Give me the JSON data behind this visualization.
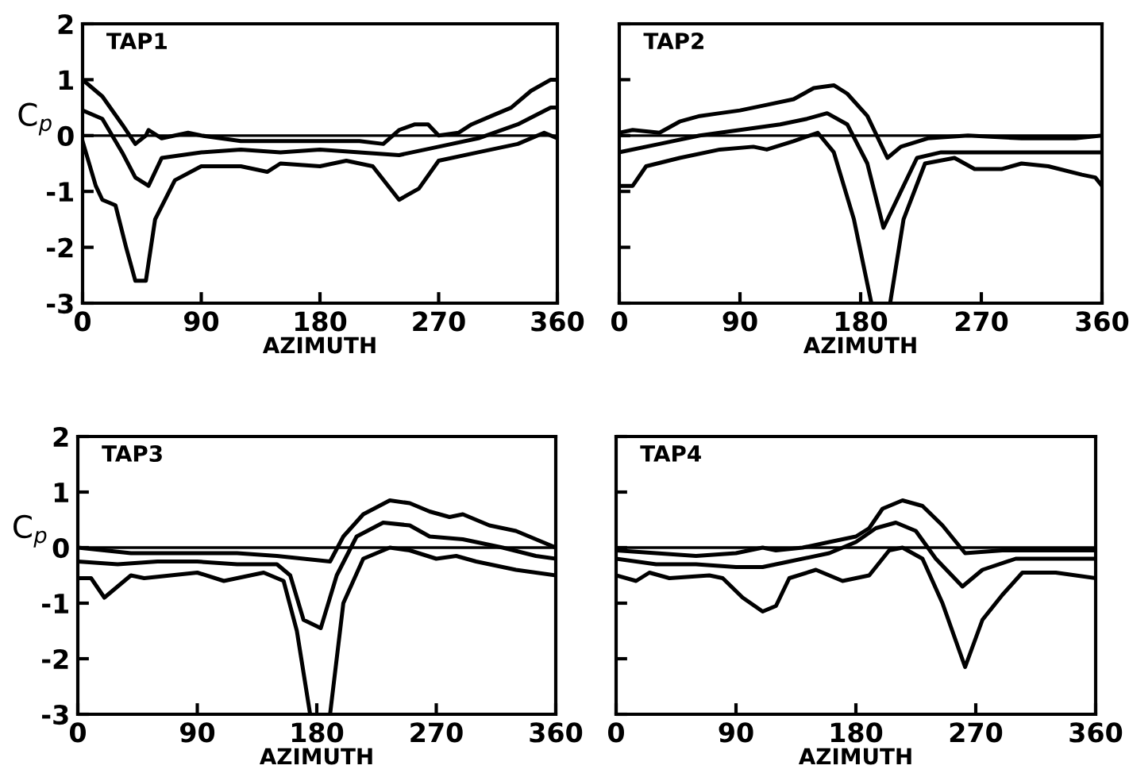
{
  "chart_data": [
    {
      "type": "line",
      "title": "TAP1",
      "xlabel": "AZIMUTH",
      "ylabel": "C$_{p}$",
      "xlim": [
        0,
        360
      ],
      "ylim": [
        -3,
        2
      ],
      "xticks": [
        0,
        90,
        180,
        270,
        360
      ],
      "yticks": [
        -3,
        -2,
        -1,
        0,
        1,
        2
      ],
      "line_style": "solid",
      "marker": "none",
      "ref_lines": [
        {
          "axis": "y",
          "value": 0,
          "color": "#000000"
        }
      ],
      "series": [
        {
          "color": "#000000",
          "x": [
            0,
            15,
            30,
            40,
            48,
            50,
            60,
            80,
            90,
            120,
            150,
            180,
            210,
            228,
            240,
            252,
            262,
            270,
            285,
            295,
            310,
            325,
            340,
            355,
            360
          ],
          "values": [
            1.0,
            0.7,
            0.2,
            -0.15,
            0,
            0.1,
            -0.05,
            0.05,
            0,
            -0.1,
            -0.1,
            -0.1,
            -0.1,
            -0.15,
            0.1,
            0.2,
            0.2,
            0.0,
            0.05,
            0.2,
            0.35,
            0.5,
            0.8,
            1.0,
            1.0
          ]
        },
        {
          "color": "#000000",
          "x": [
            0,
            15,
            30,
            40,
            50,
            60,
            90,
            120,
            150,
            180,
            210,
            240,
            270,
            300,
            330,
            355,
            360
          ],
          "values": [
            0.45,
            0.3,
            -0.3,
            -0.75,
            -0.9,
            -0.4,
            -0.3,
            -0.25,
            -0.3,
            -0.25,
            -0.3,
            -0.35,
            -0.2,
            -0.05,
            0.2,
            0.5,
            0.5
          ]
        },
        {
          "color": "#000000",
          "x": [
            0,
            10,
            15,
            25,
            33,
            40,
            48,
            55,
            70,
            90,
            120,
            140,
            150,
            180,
            200,
            220,
            240,
            255,
            270,
            300,
            330,
            350,
            360
          ],
          "values": [
            -0.1,
            -0.9,
            -1.15,
            -1.25,
            -2.0,
            -2.6,
            -2.6,
            -1.5,
            -0.8,
            -0.55,
            -0.55,
            -0.65,
            -0.5,
            -0.55,
            -0.45,
            -0.55,
            -1.15,
            -0.95,
            -0.45,
            -0.3,
            -0.15,
            0.05,
            -0.05
          ]
        }
      ]
    },
    {
      "type": "line",
      "title": "TAP2",
      "xlabel": "AZIMUTH",
      "xlim": [
        0,
        360
      ],
      "ylim": [
        -3,
        2
      ],
      "xticks": [
        0,
        90,
        180,
        270,
        360
      ],
      "yticks": [
        -3,
        -2,
        -1,
        0,
        1,
        2
      ],
      "tick_labels": "x",
      "line_style": "solid",
      "marker": "none",
      "ref_lines": [
        {
          "axis": "y",
          "value": 0,
          "color": "#000000"
        }
      ],
      "series": [
        {
          "color": "#000000",
          "x": [
            0,
            10,
            30,
            45,
            60,
            75,
            90,
            110,
            130,
            145,
            160,
            170,
            185,
            200,
            210,
            230,
            260,
            300,
            340,
            360
          ],
          "values": [
            0.05,
            0.1,
            0.05,
            0.25,
            0.35,
            0.4,
            0.45,
            0.55,
            0.65,
            0.85,
            0.9,
            0.75,
            0.35,
            -0.4,
            -0.2,
            -0.05,
            0.0,
            -0.05,
            -0.05,
            0.0
          ]
        },
        {
          "color": "#000000",
          "x": [
            0,
            30,
            60,
            90,
            120,
            140,
            155,
            170,
            185,
            197,
            210,
            222,
            240,
            270,
            300,
            360
          ],
          "values": [
            -0.3,
            -0.15,
            0.0,
            0.1,
            0.2,
            0.3,
            0.4,
            0.2,
            -0.5,
            -1.65,
            -1.0,
            -0.4,
            -0.3,
            -0.3,
            -0.3,
            -0.3
          ]
        },
        {
          "color": "#000000",
          "x": [
            0,
            10,
            20,
            45,
            75,
            100,
            110,
            130,
            148,
            160,
            175,
            188,
            195,
            202,
            212,
            228,
            250,
            265,
            285,
            300,
            320,
            345,
            355,
            360
          ],
          "values": [
            -0.9,
            -0.9,
            -0.55,
            -0.4,
            -0.25,
            -0.2,
            -0.25,
            -0.1,
            0.05,
            -0.3,
            -1.5,
            -3.0,
            null,
            -3.0,
            -1.5,
            -0.5,
            -0.4,
            -0.6,
            -0.6,
            -0.5,
            -0.55,
            -0.7,
            -0.75,
            -0.9
          ]
        }
      ]
    },
    {
      "type": "line",
      "title": "TAP3",
      "xlabel": "AZIMUTH",
      "ylabel": "C$_{p}$",
      "xlim": [
        0,
        360
      ],
      "ylim": [
        -3,
        2
      ],
      "xticks": [
        0,
        90,
        180,
        270,
        360
      ],
      "yticks": [
        -3,
        -2,
        -1,
        0,
        1,
        2
      ],
      "line_style": "solid",
      "marker": "none",
      "ref_lines": [
        {
          "axis": "y",
          "value": 0,
          "color": "#000000"
        }
      ],
      "series": [
        {
          "color": "#000000",
          "x": [
            0,
            20,
            40,
            60,
            90,
            120,
            150,
            170,
            190,
            200,
            215,
            235,
            250,
            265,
            280,
            290,
            310,
            330,
            350,
            360
          ],
          "values": [
            0.0,
            -0.05,
            -0.1,
            -0.1,
            -0.1,
            -0.1,
            -0.15,
            -0.2,
            -0.25,
            0.2,
            0.6,
            0.85,
            0.8,
            0.65,
            0.55,
            0.6,
            0.4,
            0.3,
            0.1,
            0.0
          ]
        },
        {
          "color": "#000000",
          "x": [
            0,
            30,
            60,
            90,
            120,
            150,
            160,
            170,
            183,
            195,
            210,
            230,
            250,
            265,
            290,
            320,
            345,
            360
          ],
          "values": [
            -0.25,
            -0.3,
            -0.25,
            -0.25,
            -0.3,
            -0.3,
            -0.5,
            -1.3,
            -1.45,
            -0.5,
            0.2,
            0.45,
            0.4,
            0.2,
            0.15,
            0.0,
            -0.15,
            -0.2
          ]
        },
        {
          "color": "#000000",
          "x": [
            0,
            10,
            20,
            40,
            50,
            70,
            90,
            110,
            120,
            140,
            155,
            165,
            175,
            182,
            190,
            200,
            215,
            235,
            250,
            270,
            285,
            300,
            330,
            360
          ],
          "values": [
            -0.55,
            -0.55,
            -0.9,
            -0.5,
            -0.55,
            -0.5,
            -0.45,
            -0.6,
            -0.55,
            -0.45,
            -0.6,
            -1.5,
            -3.0,
            null,
            -3.0,
            -1.0,
            -0.2,
            0.0,
            -0.05,
            -0.2,
            -0.15,
            -0.25,
            -0.4,
            -0.5
          ]
        }
      ]
    },
    {
      "type": "line",
      "title": "TAP4",
      "xlabel": "AZIMUTH",
      "xlim": [
        0,
        360
      ],
      "ylim": [
        -3,
        2
      ],
      "xticks": [
        0,
        90,
        180,
        270,
        360
      ],
      "yticks": [
        -3,
        -2,
        -1,
        0,
        1,
        2
      ],
      "tick_labels": "x",
      "line_style": "solid",
      "marker": "none",
      "ref_lines": [
        {
          "axis": "y",
          "value": 0,
          "color": "#000000"
        }
      ],
      "series": [
        {
          "color": "#000000",
          "x": [
            0,
            30,
            60,
            90,
            110,
            120,
            140,
            160,
            180,
            190,
            200,
            215,
            230,
            245,
            262,
            290,
            330,
            360
          ],
          "values": [
            -0.05,
            -0.1,
            -0.15,
            -0.1,
            0.0,
            -0.05,
            0.0,
            0.1,
            0.2,
            0.35,
            0.7,
            0.85,
            0.75,
            0.4,
            -0.1,
            -0.05,
            -0.05,
            -0.05
          ]
        },
        {
          "color": "#000000",
          "x": [
            0,
            30,
            60,
            90,
            110,
            130,
            160,
            180,
            195,
            210,
            225,
            240,
            260,
            275,
            300,
            330,
            360
          ],
          "values": [
            -0.2,
            -0.3,
            -0.3,
            -0.35,
            -0.35,
            -0.25,
            -0.1,
            0.1,
            0.35,
            0.45,
            0.3,
            -0.2,
            -0.7,
            -0.4,
            -0.2,
            -0.2,
            -0.2
          ]
        },
        {
          "color": "#000000",
          "x": [
            0,
            15,
            25,
            40,
            70,
            80,
            95,
            110,
            120,
            130,
            150,
            170,
            190,
            205,
            215,
            230,
            245,
            262,
            275,
            290,
            305,
            330,
            345,
            360
          ],
          "values": [
            -0.5,
            -0.6,
            -0.45,
            -0.55,
            -0.5,
            -0.55,
            -0.9,
            -1.15,
            -1.05,
            -0.55,
            -0.4,
            -0.6,
            -0.5,
            -0.05,
            0.0,
            -0.2,
            -1.0,
            -2.15,
            -1.3,
            -0.85,
            -0.45,
            -0.45,
            -0.5,
            -0.55
          ]
        }
      ]
    }
  ]
}
